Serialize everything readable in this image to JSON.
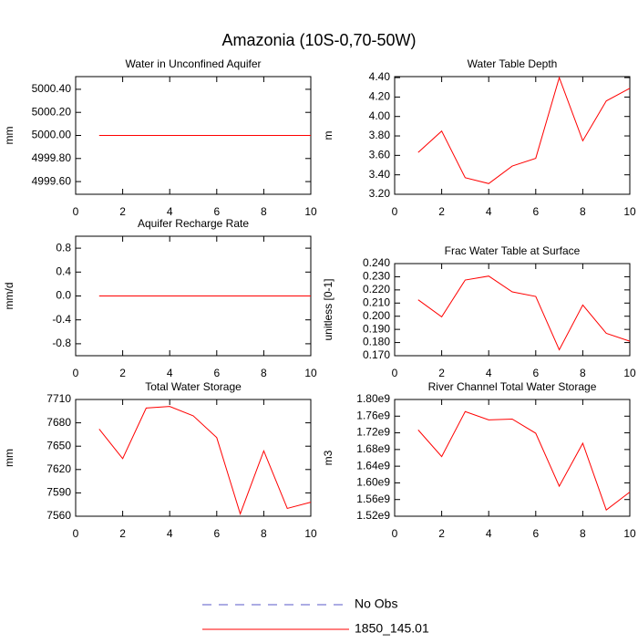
{
  "title": "Amazonia (10S-0,70-50W)",
  "legend": [
    {
      "name": "No Obs",
      "color": "#5a5ac8",
      "dashed": true
    },
    {
      "name": "1850_145.01",
      "color": "#ff0000",
      "dashed": false
    }
  ],
  "chart_data": [
    {
      "type": "line",
      "title": "Water in Unconfined Aquifer",
      "y_label": "mm",
      "x": [
        1,
        2,
        3,
        4,
        5,
        6,
        7,
        8,
        9,
        10
      ],
      "xlim": [
        0,
        10
      ],
      "xticks": [
        0,
        2,
        4,
        6,
        8,
        10
      ],
      "ylim": [
        4999.49,
        5000.51
      ],
      "yticks": [
        {
          "value": 4999.6,
          "label": "4999.60"
        },
        {
          "value": 4999.8,
          "label": "4999.80"
        },
        {
          "value": 5000,
          "label": "5000.00"
        },
        {
          "value": 5000.2,
          "label": "5000.20"
        },
        {
          "value": 5000.4,
          "label": "5000.40"
        }
      ],
      "series": [
        {
          "color": "#ff0000",
          "values": [
            5000,
            5000,
            5000,
            5000,
            5000,
            5000,
            5000,
            5000,
            5000,
            5000
          ]
        }
      ]
    },
    {
      "type": "line",
      "title": "Water Table Depth",
      "y_label": "m",
      "x": [
        1,
        2,
        3,
        4,
        5,
        6,
        7,
        8,
        9,
        10
      ],
      "xlim": [
        0,
        10
      ],
      "xticks": [
        0,
        2,
        4,
        6,
        8,
        10
      ],
      "ylim": [
        3.2,
        4.41
      ],
      "yticks": [
        {
          "value": 3.2,
          "label": "3.20"
        },
        {
          "value": 3.4,
          "label": "3.40"
        },
        {
          "value": 3.6,
          "label": "3.60"
        },
        {
          "value": 3.8,
          "label": "3.80"
        },
        {
          "value": 4.0,
          "label": "4.00"
        },
        {
          "value": 4.2,
          "label": "4.20"
        },
        {
          "value": 4.4,
          "label": "4.40"
        }
      ],
      "series": [
        {
          "color": "#ff0000",
          "values": [
            3.63,
            3.85,
            3.37,
            3.31,
            3.49,
            3.57,
            4.4,
            3.75,
            4.16,
            4.29
          ]
        }
      ]
    },
    {
      "type": "line",
      "title": "Aquifer Recharge Rate",
      "y_label": "mm/d",
      "x": [
        1,
        2,
        3,
        4,
        5,
        6,
        7,
        8,
        9,
        10
      ],
      "xlim": [
        0,
        10
      ],
      "xticks": [
        0,
        2,
        4,
        6,
        8,
        10
      ],
      "ylim": [
        -1,
        1
      ],
      "yticks": [
        -0.8,
        -0.4,
        {
          "value": 0,
          "label": "0.0"
        },
        0.4,
        0.8
      ],
      "series": [
        {
          "color": "#ff0000",
          "values": [
            0,
            0,
            0,
            0,
            0,
            0,
            0,
            0,
            0,
            0
          ]
        }
      ]
    },
    {
      "type": "line",
      "title": "Frac Water Table at Surface",
      "y_label": "unitless [0-1]",
      "x": [
        1,
        2,
        3,
        4,
        5,
        6,
        7,
        8,
        9,
        10
      ],
      "xlim": [
        0,
        10
      ],
      "xticks": [
        0,
        2,
        4,
        6,
        8,
        10
      ],
      "ylim": [
        0.17,
        0.24
      ],
      "yticks": [
        {
          "value": 0.17,
          "label": "0.170"
        },
        {
          "value": 0.18,
          "label": "0.180"
        },
        {
          "value": 0.19,
          "label": "0.190"
        },
        {
          "value": 0.2,
          "label": "0.200"
        },
        {
          "value": 0.21,
          "label": "0.210"
        },
        {
          "value": 0.22,
          "label": "0.220"
        },
        {
          "value": 0.23,
          "label": "0.230"
        },
        {
          "value": 0.24,
          "label": "0.240"
        }
      ],
      "series": [
        {
          "color": "#ff0000",
          "values": [
            0.2125,
            0.1995,
            0.2275,
            0.2305,
            0.2185,
            0.215,
            0.1745,
            0.2085,
            0.187,
            0.181
          ]
        }
      ]
    },
    {
      "type": "line",
      "title": "Total Water Storage",
      "y_label": "mm",
      "x": [
        1,
        2,
        3,
        4,
        5,
        6,
        7,
        8,
        9,
        10
      ],
      "xlim": [
        0,
        10
      ],
      "xticks": [
        0,
        2,
        4,
        6,
        8,
        10
      ],
      "ylim": [
        7560,
        7710
      ],
      "yticks": [
        7560,
        7590,
        7620,
        7650,
        7680,
        7710
      ],
      "series": [
        {
          "color": "#ff0000",
          "values": [
            7672,
            7634,
            7699,
            7701,
            7689,
            7661,
            7563,
            7644,
            7570,
            7578
          ]
        }
      ]
    },
    {
      "type": "line",
      "title": "River Channel Total Water Storage",
      "y_label": "m3",
      "x": [
        1,
        2,
        3,
        4,
        5,
        6,
        7,
        8,
        9,
        10
      ],
      "xlim": [
        0,
        10
      ],
      "xticks": [
        0,
        2,
        4,
        6,
        8,
        10
      ],
      "ylim": [
        1520000000,
        1800000000
      ],
      "yticks": [
        {
          "value": 1520000000,
          "label": "1.52e9"
        },
        {
          "value": 1560000000,
          "label": "1.56e9"
        },
        {
          "value": 1600000000,
          "label": "1.60e9"
        },
        {
          "value": 1640000000,
          "label": "1.64e9"
        },
        {
          "value": 1680000000,
          "label": "1.68e9"
        },
        {
          "value": 1720000000,
          "label": "1.72e9"
        },
        {
          "value": 1760000000,
          "label": "1.76e9"
        },
        {
          "value": 1800000000,
          "label": "1.80e9"
        }
      ],
      "series": [
        {
          "color": "#ff0000",
          "values": [
            1727000000,
            1663000000,
            1771000000,
            1751000000,
            1753000000,
            1719000000,
            1592000000,
            1695000000,
            1535000000,
            1578000000
          ]
        }
      ]
    }
  ]
}
